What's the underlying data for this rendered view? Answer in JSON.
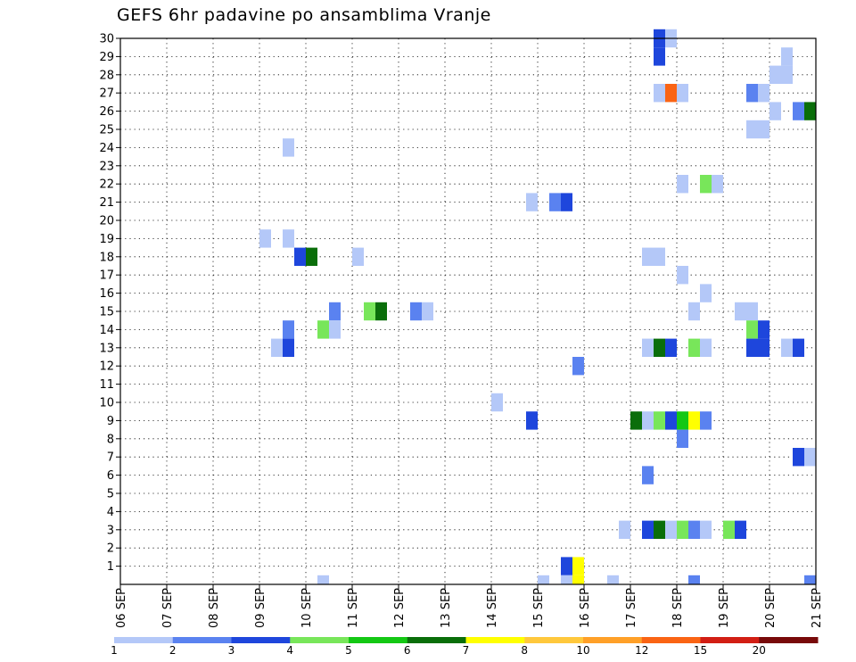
{
  "chart_data": {
    "type": "heatmap",
    "title": "GEFS 6hr padavine po ansamblima Vranje",
    "x_ticks": [
      "06 SEP",
      "07 SEP",
      "08 SEP",
      "09 SEP",
      "10 SEP",
      "11 SEP",
      "12 SEP",
      "13 SEP",
      "14 SEP",
      "15 SEP",
      "16 SEP",
      "17 SEP",
      "18 SEP",
      "19 SEP",
      "20 SEP",
      "21 SEP"
    ],
    "x_range_days": [
      6,
      21
    ],
    "y_ticks": [
      "1",
      "2",
      "3",
      "4",
      "5",
      "6",
      "7",
      "8",
      "9",
      "10",
      "11",
      "12",
      "13",
      "14",
      "15",
      "16",
      "17",
      "18",
      "19",
      "20",
      "21",
      "22",
      "23",
      "24",
      "25",
      "26",
      "27",
      "28",
      "29",
      "30"
    ],
    "y_range": [
      0,
      30
    ],
    "grid": true,
    "color_scale": {
      "labels": [
        "1",
        "2",
        "3",
        "4",
        "5",
        "6",
        "7",
        "8",
        "10",
        "12",
        "15",
        "20"
      ],
      "colors": [
        "#b4c8f8",
        "#5a82f0",
        "#1e46dc",
        "#78e65a",
        "#14c814",
        "#0a6e0a",
        "#ffff00",
        "#ffc83c",
        "#ffa028",
        "#fa6414",
        "#d21e14",
        "#780a0a"
      ]
    },
    "cells": [
      {
        "member": 30,
        "day": 17.5,
        "cls": 3
      },
      {
        "member": 30,
        "day": 17.75,
        "cls": 1
      },
      {
        "member": 29,
        "day": 17.5,
        "cls": 3
      },
      {
        "member": 29,
        "day": 20.25,
        "cls": 1
      },
      {
        "member": 28,
        "day": 20.0,
        "cls": 1
      },
      {
        "member": 28,
        "day": 20.25,
        "cls": 1
      },
      {
        "member": 27,
        "day": 17.5,
        "cls": 1
      },
      {
        "member": 27,
        "day": 17.75,
        "cls": 10
      },
      {
        "member": 27,
        "day": 18.0,
        "cls": 1
      },
      {
        "member": 27,
        "day": 19.5,
        "cls": 2
      },
      {
        "member": 27,
        "day": 19.75,
        "cls": 1
      },
      {
        "member": 26,
        "day": 20.0,
        "cls": 1
      },
      {
        "member": 26,
        "day": 20.5,
        "cls": 2
      },
      {
        "member": 26,
        "day": 20.75,
        "cls": 6
      },
      {
        "member": 25,
        "day": 19.5,
        "cls": 1
      },
      {
        "member": 25,
        "day": 19.75,
        "cls": 1
      },
      {
        "member": 24,
        "day": 9.5,
        "cls": 1
      },
      {
        "member": 22,
        "day": 18.0,
        "cls": 1
      },
      {
        "member": 22,
        "day": 18.5,
        "cls": 4
      },
      {
        "member": 22,
        "day": 18.75,
        "cls": 1
      },
      {
        "member": 21,
        "day": 14.75,
        "cls": 1
      },
      {
        "member": 21,
        "day": 15.25,
        "cls": 2
      },
      {
        "member": 21,
        "day": 15.5,
        "cls": 3
      },
      {
        "member": 19,
        "day": 9.0,
        "cls": 1
      },
      {
        "member": 19,
        "day": 9.5,
        "cls": 1
      },
      {
        "member": 18,
        "day": 9.75,
        "cls": 3
      },
      {
        "member": 18,
        "day": 10.0,
        "cls": 6
      },
      {
        "member": 18,
        "day": 11.0,
        "cls": 1
      },
      {
        "member": 18,
        "day": 17.25,
        "cls": 1
      },
      {
        "member": 18,
        "day": 17.5,
        "cls": 1
      },
      {
        "member": 17,
        "day": 18.0,
        "cls": 1
      },
      {
        "member": 16,
        "day": 18.5,
        "cls": 1
      },
      {
        "member": 15,
        "day": 10.5,
        "cls": 2
      },
      {
        "member": 15,
        "day": 11.25,
        "cls": 4
      },
      {
        "member": 15,
        "day": 11.5,
        "cls": 6
      },
      {
        "member": 15,
        "day": 12.25,
        "cls": 2
      },
      {
        "member": 15,
        "day": 12.5,
        "cls": 1
      },
      {
        "member": 15,
        "day": 18.25,
        "cls": 1
      },
      {
        "member": 15,
        "day": 19.25,
        "cls": 1
      },
      {
        "member": 15,
        "day": 19.5,
        "cls": 1
      },
      {
        "member": 14,
        "day": 9.5,
        "cls": 2
      },
      {
        "member": 14,
        "day": 10.25,
        "cls": 4
      },
      {
        "member": 14,
        "day": 10.5,
        "cls": 1
      },
      {
        "member": 14,
        "day": 19.5,
        "cls": 4
      },
      {
        "member": 14,
        "day": 19.75,
        "cls": 3
      },
      {
        "member": 13,
        "day": 9.25,
        "cls": 1
      },
      {
        "member": 13,
        "day": 9.5,
        "cls": 3
      },
      {
        "member": 13,
        "day": 17.25,
        "cls": 1
      },
      {
        "member": 13,
        "day": 17.5,
        "cls": 6
      },
      {
        "member": 13,
        "day": 17.75,
        "cls": 3
      },
      {
        "member": 13,
        "day": 18.25,
        "cls": 4
      },
      {
        "member": 13,
        "day": 18.5,
        "cls": 1
      },
      {
        "member": 13,
        "day": 19.5,
        "cls": 3
      },
      {
        "member": 13,
        "day": 19.75,
        "cls": 3
      },
      {
        "member": 13,
        "day": 20.25,
        "cls": 1
      },
      {
        "member": 13,
        "day": 20.5,
        "cls": 3
      },
      {
        "member": 12,
        "day": 15.75,
        "cls": 2
      },
      {
        "member": 10,
        "day": 14.0,
        "cls": 1
      },
      {
        "member": 9,
        "day": 14.75,
        "cls": 3
      },
      {
        "member": 9,
        "day": 17.0,
        "cls": 6
      },
      {
        "member": 9,
        "day": 17.25,
        "cls": 1
      },
      {
        "member": 9,
        "day": 17.5,
        "cls": 4
      },
      {
        "member": 9,
        "day": 17.75,
        "cls": 3
      },
      {
        "member": 9,
        "day": 18.0,
        "cls": 5
      },
      {
        "member": 9,
        "day": 18.25,
        "cls": 7
      },
      {
        "member": 9,
        "day": 18.5,
        "cls": 2
      },
      {
        "member": 8,
        "day": 18.0,
        "cls": 2
      },
      {
        "member": 7,
        "day": 20.5,
        "cls": 3
      },
      {
        "member": 7,
        "day": 20.75,
        "cls": 1
      },
      {
        "member": 6,
        "day": 17.25,
        "cls": 2
      },
      {
        "member": 3,
        "day": 16.75,
        "cls": 1
      },
      {
        "member": 3,
        "day": 17.25,
        "cls": 3
      },
      {
        "member": 3,
        "day": 17.5,
        "cls": 6
      },
      {
        "member": 3,
        "day": 17.75,
        "cls": 1
      },
      {
        "member": 3,
        "day": 18.0,
        "cls": 4
      },
      {
        "member": 3,
        "day": 18.25,
        "cls": 2
      },
      {
        "member": 3,
        "day": 18.5,
        "cls": 1
      },
      {
        "member": 3,
        "day": 19.0,
        "cls": 4
      },
      {
        "member": 3,
        "day": 19.25,
        "cls": 3
      },
      {
        "member": 1,
        "day": 15.5,
        "cls": 3
      },
      {
        "member": 1,
        "day": 15.75,
        "cls": 7
      },
      {
        "member": 0,
        "day": 10.25,
        "cls": 1
      },
      {
        "member": 0,
        "day": 15.0,
        "cls": 1
      },
      {
        "member": 0,
        "day": 15.5,
        "cls": 1
      },
      {
        "member": 0,
        "day": 15.75,
        "cls": 7
      },
      {
        "member": 0,
        "day": 16.5,
        "cls": 1
      },
      {
        "member": 0,
        "day": 18.25,
        "cls": 2
      },
      {
        "member": 0,
        "day": 20.75,
        "cls": 2
      }
    ]
  }
}
